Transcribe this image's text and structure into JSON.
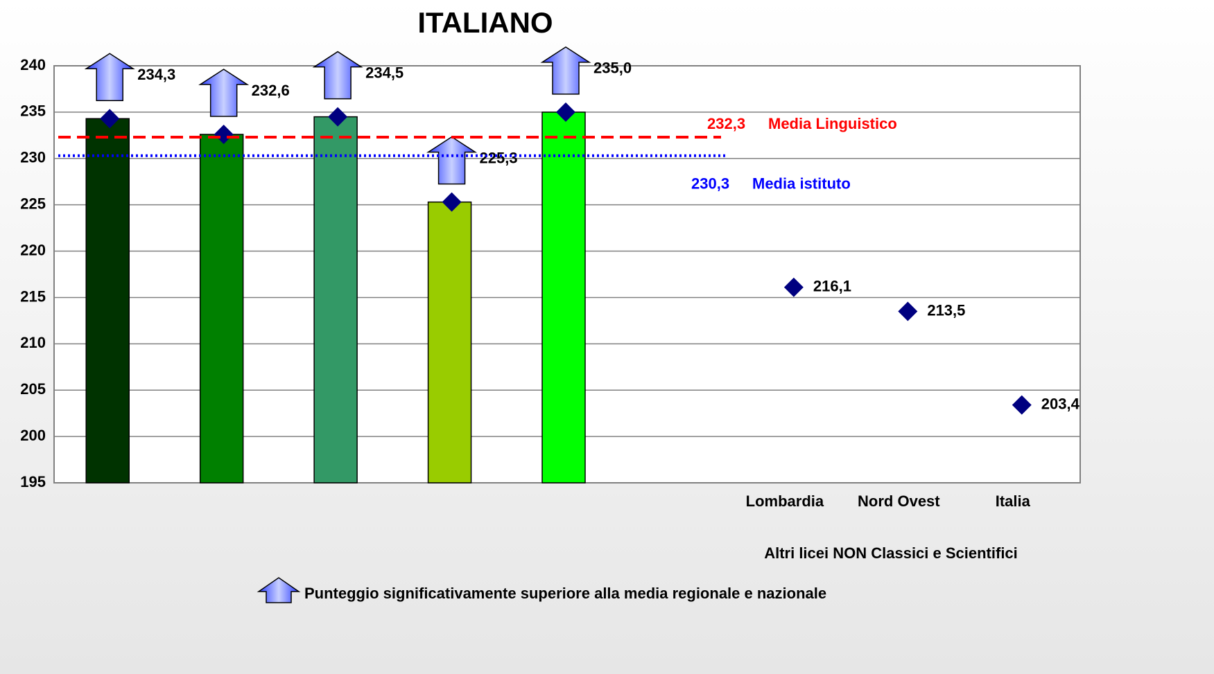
{
  "chart_data": {
    "type": "bar",
    "title": "ITALIANO",
    "categories": [
      null,
      null,
      null,
      null,
      null,
      null,
      "Lombardia",
      "Nord Ovest",
      "Italia"
    ],
    "group_label": "Altri licei NON Classici e Scientifici",
    "series": [
      {
        "type": "bar",
        "values": [
          234.3,
          232.6,
          234.5,
          225.3,
          235.0,
          null,
          null,
          null,
          null
        ],
        "colors": [
          "#003300",
          "#008000",
          "#339966",
          "#99cc00",
          "#00ff00",
          null,
          null,
          null,
          null
        ]
      },
      {
        "type": "scatter",
        "color": "#000080",
        "values": [
          234.3,
          232.6,
          234.5,
          225.3,
          235.0,
          null,
          216.1,
          213.5,
          203.4
        ],
        "value_labels": [
          "234,3",
          "232,6",
          "234,5",
          "225,3",
          "235,0",
          null,
          "216,1",
          "213,5",
          "203,4"
        ]
      }
    ],
    "significant": [
      true,
      true,
      true,
      true,
      true,
      false,
      false,
      false,
      false
    ],
    "reference_lines": [
      {
        "value": 232.3,
        "value_label": "232,3",
        "label": "Media Linguistico",
        "color": "#ff0000",
        "style": "dashed"
      },
      {
        "value": 230.3,
        "value_label": "230,3",
        "label": "Media istituto",
        "color": "#0000ff",
        "style": "dotted"
      }
    ],
    "ylim": [
      195,
      240
    ],
    "yticks": [
      195,
      200,
      205,
      210,
      215,
      220,
      225,
      230,
      235,
      240
    ],
    "grid": true,
    "legend": {
      "label": "Punteggio significativamente superiore alla media regionale e nazionale"
    }
  }
}
